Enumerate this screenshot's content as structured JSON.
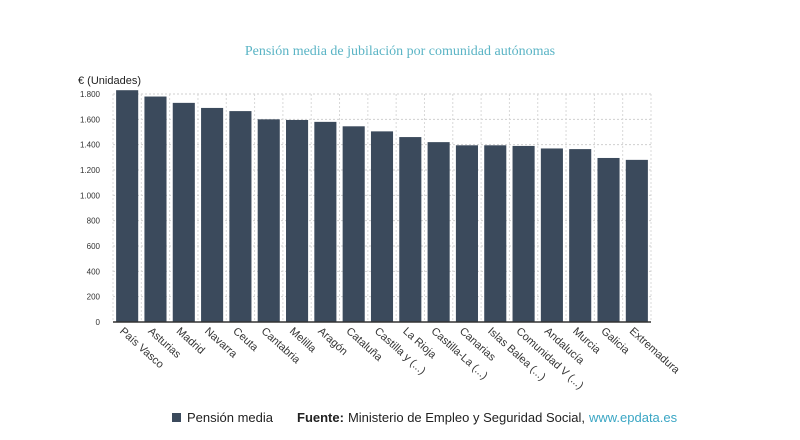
{
  "chart_data": {
    "type": "bar",
    "title": "Pensión media de jubilación por comunidad autónomas",
    "ylabel": "€ (Unidades)",
    "xlabel": "",
    "ylim": [
      0,
      1800
    ],
    "yticks": [
      0,
      200,
      400,
      600,
      800,
      1000,
      1200,
      1400,
      1600,
      1800
    ],
    "ytick_labels": [
      "0",
      "200",
      "400",
      "600",
      "800",
      "1.000",
      "1.200",
      "1.400",
      "1.600",
      "1.800"
    ],
    "grid": true,
    "legend_position": "bottom",
    "categories": [
      "País Vasco",
      "Asturias",
      "Madrid",
      "Navarra",
      "Ceuta",
      "Cantabria",
      "Melilla",
      "Aragón",
      "Cataluña",
      "Castilla y (...)",
      "La Rioja",
      "Castilla-La (...)",
      "Canarias",
      "Islas Balea (...)",
      "Comunidad V (...)",
      "Andalucía",
      "Murcia",
      "Galicia",
      "Extremadura"
    ],
    "series": [
      {
        "name": "Pensión media",
        "color": "#3b4a5c",
        "values": [
          1830,
          1780,
          1730,
          1690,
          1665,
          1600,
          1595,
          1580,
          1545,
          1505,
          1460,
          1420,
          1395,
          1395,
          1390,
          1370,
          1365,
          1295,
          1280
        ]
      }
    ]
  },
  "footer": {
    "legend_label": "Pensión media",
    "source_prefix": "Fuente:",
    "source_text": "Ministerio de Empleo y Seguridad Social,",
    "source_link": "www.epdata.es"
  }
}
